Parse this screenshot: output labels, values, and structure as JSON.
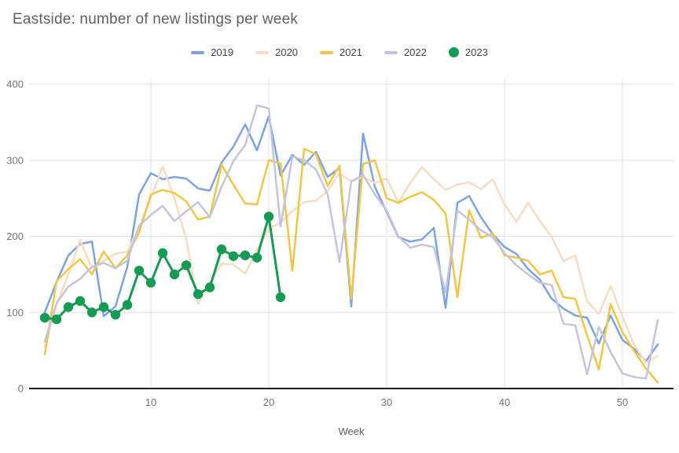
{
  "title": "Eastside: number of new listings per week",
  "colors": {
    "background": "#ffffff",
    "grid": "#e2e2e2",
    "axis_line": "#1f1f1f",
    "title_text": "#616161",
    "tick_text": "#757575",
    "legend_text": "#424242"
  },
  "chart_data": {
    "type": "line",
    "title": "Eastside: number of new listings per week",
    "xlabel": "Week",
    "ylabel": "",
    "x_ticks": [
      10,
      20,
      30,
      40,
      50
    ],
    "y_ticks": [
      0,
      100,
      200,
      300,
      400
    ],
    "xlim": [
      1,
      53
    ],
    "ylim": [
      0,
      400
    ],
    "grid": true,
    "legend_position": "top",
    "x_unit": "week number",
    "series": [
      {
        "name": "2019",
        "color": "#7ba3e6",
        "style": "line",
        "start_week": 1,
        "values": [
          100,
          140,
          175,
          190,
          193,
          95,
          108,
          160,
          255,
          283,
          275,
          278,
          276,
          263,
          260,
          297,
          318,
          347,
          313,
          358,
          280,
          307,
          294,
          311,
          278,
          290,
          108,
          335,
          265,
          232,
          199,
          193,
          196,
          211,
          106,
          244,
          253,
          225,
          203,
          186,
          177,
          157,
          143,
          118,
          105,
          96,
          93,
          59,
          96,
          64,
          52,
          36,
          58
        ]
      },
      {
        "name": "2020",
        "color": "#f6dcc2",
        "style": "line",
        "start_week": 1,
        "values": [
          55,
          110,
          150,
          195,
          158,
          168,
          177,
          180,
          212,
          250,
          292,
          250,
          196,
          111,
          140,
          164,
          163,
          151,
          183,
          210,
          218,
          233,
          245,
          247,
          260,
          283,
          272,
          278,
          270,
          276,
          245,
          270,
          291,
          275,
          261,
          268,
          271,
          262,
          275,
          242,
          219,
          244,
          220,
          199,
          167,
          175,
          115,
          98,
          135,
          95,
          57,
          34,
          43
        ]
      },
      {
        "name": "2021",
        "color": "#f1c647",
        "style": "line",
        "start_week": 1,
        "values": [
          45,
          141,
          157,
          170,
          150,
          180,
          158,
          175,
          205,
          255,
          261,
          257,
          246,
          222,
          226,
          294,
          268,
          243,
          242,
          300,
          296,
          155,
          315,
          308,
          266,
          293,
          118,
          295,
          300,
          250,
          244,
          252,
          258,
          248,
          230,
          120,
          234,
          198,
          204,
          175,
          172,
          168,
          150,
          155,
          120,
          118,
          70,
          25,
          111,
          74,
          49,
          26,
          8
        ]
      },
      {
        "name": "2022",
        "color": "#c5c4df",
        "style": "line",
        "start_week": 1,
        "values": [
          62,
          112,
          134,
          144,
          160,
          165,
          158,
          168,
          214,
          228,
          240,
          220,
          233,
          245,
          225,
          265,
          299,
          320,
          372,
          368,
          213,
          305,
          300,
          288,
          255,
          166,
          272,
          281,
          255,
          234,
          200,
          185,
          189,
          186,
          126,
          234,
          222,
          208,
          199,
          178,
          162,
          150,
          139,
          136,
          85,
          83,
          19,
          81,
          48,
          20,
          15,
          13,
          90
        ]
      },
      {
        "name": "2023",
        "color": "#169b54",
        "style": "line+markers",
        "start_week": 1,
        "values": [
          93,
          91,
          107,
          115,
          100,
          107,
          97,
          110,
          155,
          139,
          178,
          150,
          162,
          124,
          133,
          183,
          174,
          175,
          172,
          226,
          120
        ]
      }
    ]
  }
}
